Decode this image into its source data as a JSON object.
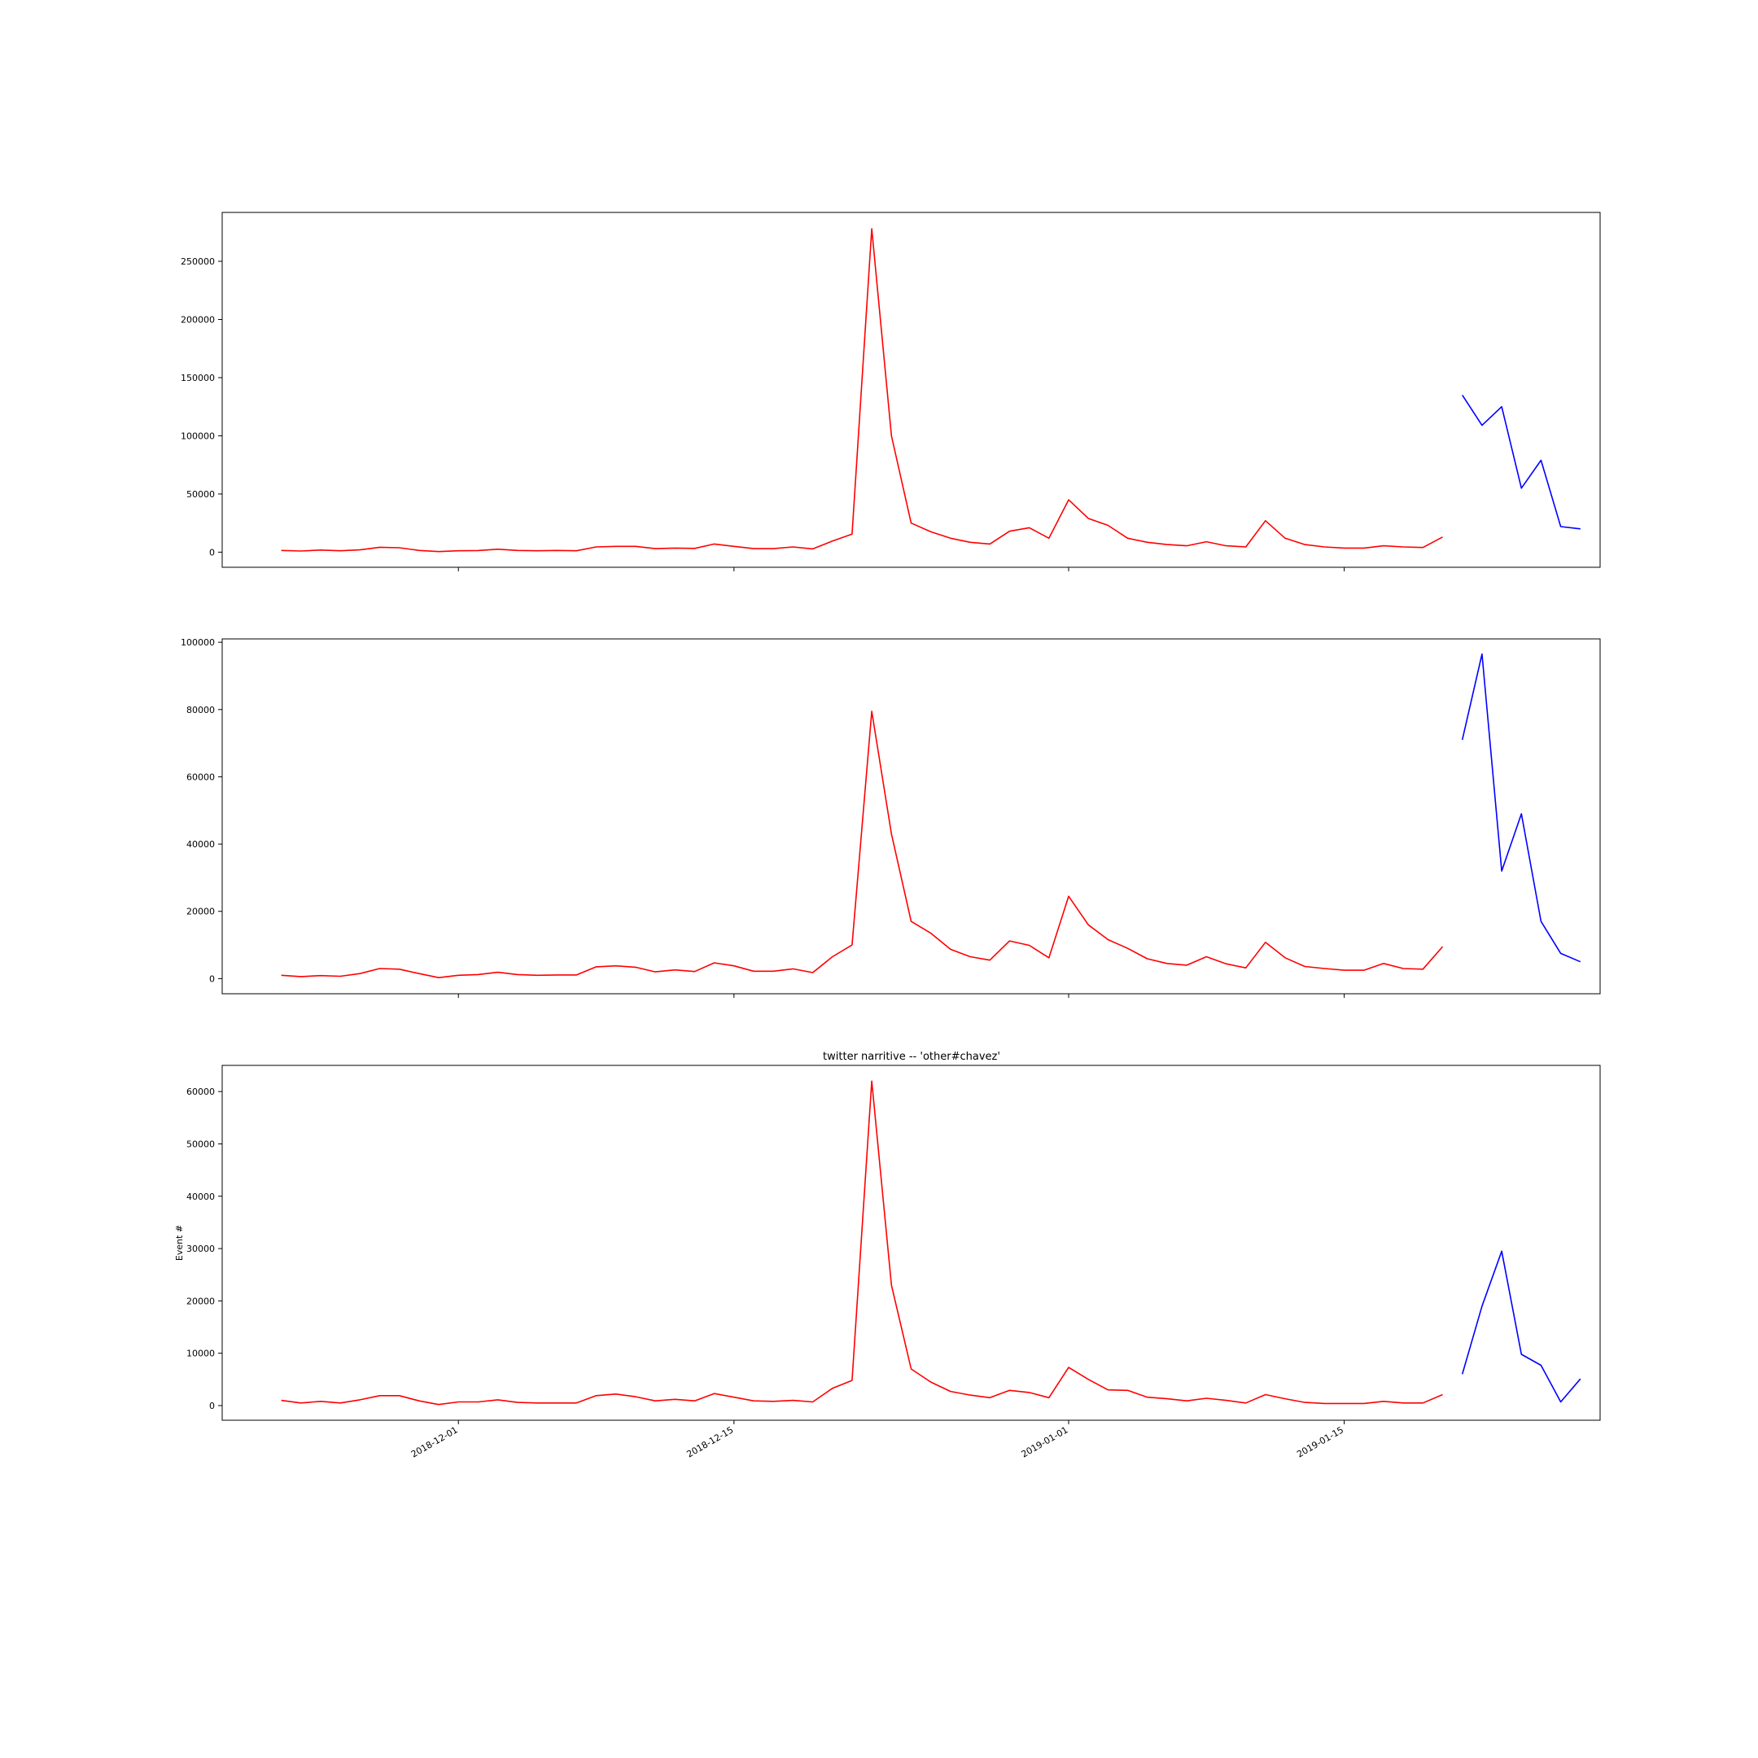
{
  "chart_data": [
    {
      "type": "line",
      "title": "",
      "xlabel": "",
      "ylabel": "",
      "x_range": [
        "2018-11-19",
        "2019-01-28"
      ],
      "ylim": [
        -13000,
        292000
      ],
      "yticks": [
        0,
        50000,
        100000,
        150000,
        200000,
        250000
      ],
      "ytick_labels": [
        "0",
        "50000",
        "100000",
        "150000",
        "200000",
        "250000"
      ],
      "xticks": [
        "2018-12-01",
        "2018-12-15",
        "2019-01-01",
        "2019-01-15"
      ],
      "xtick_labels": [],
      "grid": false,
      "series": [
        {
          "color": "#ff0000",
          "x": [
            "2018-11-22",
            "2018-11-23",
            "2018-11-24",
            "2018-11-25",
            "2018-11-26",
            "2018-11-27",
            "2018-11-28",
            "2018-11-29",
            "2018-11-30",
            "2018-12-01",
            "2018-12-02",
            "2018-12-03",
            "2018-12-04",
            "2018-12-05",
            "2018-12-06",
            "2018-12-07",
            "2018-12-08",
            "2018-12-09",
            "2018-12-10",
            "2018-12-11",
            "2018-12-12",
            "2018-12-13",
            "2018-12-14",
            "2018-12-15",
            "2018-12-16",
            "2018-12-17",
            "2018-12-18",
            "2018-12-19",
            "2018-12-20",
            "2018-12-21",
            "2018-12-22",
            "2018-12-23",
            "2018-12-24",
            "2018-12-25",
            "2018-12-26",
            "2018-12-27",
            "2018-12-28",
            "2018-12-29",
            "2018-12-30",
            "2018-12-31",
            "2019-01-01",
            "2019-01-02",
            "2019-01-03",
            "2019-01-04",
            "2019-01-05",
            "2019-01-06",
            "2019-01-07",
            "2019-01-08",
            "2019-01-09",
            "2019-01-10",
            "2019-01-11",
            "2019-01-12",
            "2019-01-13",
            "2019-01-14",
            "2019-01-15",
            "2019-01-16",
            "2019-01-17",
            "2019-01-18",
            "2019-01-19",
            "2019-01-20"
          ],
          "y": [
            1500,
            1000,
            1800,
            1200,
            2000,
            4200,
            3800,
            1500,
            500,
            1200,
            1400,
            2500,
            1500,
            1200,
            1500,
            1200,
            4500,
            5000,
            5000,
            3000,
            3500,
            3200,
            7000,
            5000,
            3000,
            3000,
            4500,
            2800,
            9500,
            15500,
            278000,
            100000,
            25000,
            17500,
            12000,
            8500,
            7000,
            18000,
            21000,
            12000,
            45000,
            29000,
            23000,
            12000,
            8500,
            6500,
            5500,
            9000,
            5500,
            4500,
            27000,
            12000,
            6500,
            4500,
            3500,
            3500,
            5500,
            4500,
            4000,
            13000
          ]
        },
        {
          "color": "#0000ff",
          "x": [
            "2019-01-21",
            "2019-01-22",
            "2019-01-23",
            "2019-01-24",
            "2019-01-25",
            "2019-01-26",
            "2019-01-27"
          ],
          "y": [
            135000,
            109000,
            125000,
            55000,
            79000,
            22000,
            20000
          ]
        }
      ]
    },
    {
      "type": "line",
      "title": "",
      "xlabel": "",
      "ylabel": "",
      "x_range": [
        "2018-11-19",
        "2019-01-28"
      ],
      "ylim": [
        -4500,
        101000
      ],
      "yticks": [
        0,
        20000,
        40000,
        60000,
        80000,
        100000
      ],
      "ytick_labels": [
        "0",
        "20000",
        "40000",
        "60000",
        "80000",
        "100000"
      ],
      "xticks": [
        "2018-12-01",
        "2018-12-15",
        "2019-01-01",
        "2019-01-15"
      ],
      "xtick_labels": [],
      "grid": false,
      "series": [
        {
          "color": "#ff0000",
          "x": [
            "2018-11-22",
            "2018-11-23",
            "2018-11-24",
            "2018-11-25",
            "2018-11-26",
            "2018-11-27",
            "2018-11-28",
            "2018-11-29",
            "2018-11-30",
            "2018-12-01",
            "2018-12-02",
            "2018-12-03",
            "2018-12-04",
            "2018-12-05",
            "2018-12-06",
            "2018-12-07",
            "2018-12-08",
            "2018-12-09",
            "2018-12-10",
            "2018-12-11",
            "2018-12-12",
            "2018-12-13",
            "2018-12-14",
            "2018-12-15",
            "2018-12-16",
            "2018-12-17",
            "2018-12-18",
            "2018-12-19",
            "2018-12-20",
            "2018-12-21",
            "2018-12-22",
            "2018-12-23",
            "2018-12-24",
            "2018-12-25",
            "2018-12-26",
            "2018-12-27",
            "2018-12-28",
            "2018-12-29",
            "2018-12-30",
            "2018-12-31",
            "2019-01-01",
            "2019-01-02",
            "2019-01-03",
            "2019-01-04",
            "2019-01-05",
            "2019-01-06",
            "2019-01-07",
            "2019-01-08",
            "2019-01-09",
            "2019-01-10",
            "2019-01-11",
            "2019-01-12",
            "2019-01-13",
            "2019-01-14",
            "2019-01-15",
            "2019-01-16",
            "2019-01-17",
            "2019-01-18",
            "2019-01-19",
            "2019-01-20"
          ],
          "y": [
            1000,
            600,
            900,
            700,
            1500,
            3000,
            2800,
            1500,
            300,
            1000,
            1200,
            1900,
            1200,
            1000,
            1100,
            1100,
            3500,
            3800,
            3400,
            2000,
            2600,
            2100,
            4700,
            3800,
            2200,
            2200,
            2900,
            1800,
            6500,
            10000,
            79500,
            43000,
            17000,
            13500,
            8700,
            6500,
            5500,
            11200,
            9900,
            6200,
            24500,
            16000,
            11600,
            9000,
            5900,
            4500,
            4000,
            6500,
            4400,
            3200,
            10800,
            6200,
            3600,
            3000,
            2500,
            2500,
            4500,
            3000,
            2800,
            9500
          ]
        },
        {
          "color": "#0000ff",
          "x": [
            "2019-01-21",
            "2019-01-22",
            "2019-01-23",
            "2019-01-24",
            "2019-01-25",
            "2019-01-26",
            "2019-01-27"
          ],
          "y": [
            71000,
            96500,
            32000,
            49000,
            17000,
            7500,
            5000
          ]
        }
      ]
    },
    {
      "type": "line",
      "title": "twitter narritive -- 'other#chavez'",
      "xlabel": "",
      "ylabel": "Event #",
      "x_range": [
        "2018-11-19",
        "2019-01-28"
      ],
      "ylim": [
        -2800,
        65000
      ],
      "yticks": [
        0,
        10000,
        20000,
        30000,
        40000,
        50000,
        60000
      ],
      "ytick_labels": [
        "0",
        "10000",
        "20000",
        "30000",
        "40000",
        "50000",
        "60000"
      ],
      "xticks": [
        "2018-12-01",
        "2018-12-15",
        "2019-01-01",
        "2019-01-15"
      ],
      "xtick_labels": [
        "2018-12-01",
        "2018-12-15",
        "2019-01-01",
        "2019-01-15"
      ],
      "grid": false,
      "series": [
        {
          "color": "#ff0000",
          "x": [
            "2018-11-22",
            "2018-11-23",
            "2018-11-24",
            "2018-11-25",
            "2018-11-26",
            "2018-11-27",
            "2018-11-28",
            "2018-11-29",
            "2018-11-30",
            "2018-12-01",
            "2018-12-02",
            "2018-12-03",
            "2018-12-04",
            "2018-12-05",
            "2018-12-06",
            "2018-12-07",
            "2018-12-08",
            "2018-12-09",
            "2018-12-10",
            "2018-12-11",
            "2018-12-12",
            "2018-12-13",
            "2018-12-14",
            "2018-12-15",
            "2018-12-16",
            "2018-12-17",
            "2018-12-18",
            "2018-12-19",
            "2018-12-20",
            "2018-12-21",
            "2018-12-22",
            "2018-12-23",
            "2018-12-24",
            "2018-12-25",
            "2018-12-26",
            "2018-12-27",
            "2018-12-28",
            "2018-12-29",
            "2018-12-30",
            "2018-12-31",
            "2019-01-01",
            "2019-01-02",
            "2019-01-03",
            "2019-01-04",
            "2019-01-05",
            "2019-01-06",
            "2019-01-07",
            "2019-01-08",
            "2019-01-09",
            "2019-01-10",
            "2019-01-11",
            "2019-01-12",
            "2019-01-13",
            "2019-01-14",
            "2019-01-15",
            "2019-01-16",
            "2019-01-17",
            "2019-01-18",
            "2019-01-19",
            "2019-01-20"
          ],
          "y": [
            1000,
            500,
            800,
            500,
            1100,
            1900,
            1900,
            900,
            200,
            700,
            700,
            1100,
            600,
            500,
            500,
            500,
            1900,
            2200,
            1700,
            900,
            1200,
            900,
            2300,
            1600,
            900,
            800,
            1000,
            700,
            3300,
            4800,
            62000,
            23000,
            7000,
            4500,
            2700,
            2000,
            1500,
            2900,
            2500,
            1500,
            7300,
            5000,
            3000,
            2900,
            1600,
            1300,
            900,
            1400,
            1000,
            500,
            2100,
            1300,
            600,
            400,
            400,
            400,
            800,
            500,
            500,
            2100
          ]
        },
        {
          "color": "#0000ff",
          "x": [
            "2019-01-21",
            "2019-01-22",
            "2019-01-23",
            "2019-01-24",
            "2019-01-25",
            "2019-01-26",
            "2019-01-27"
          ],
          "y": [
            6000,
            19000,
            29500,
            9800,
            7700,
            700,
            5100
          ]
        }
      ]
    }
  ]
}
